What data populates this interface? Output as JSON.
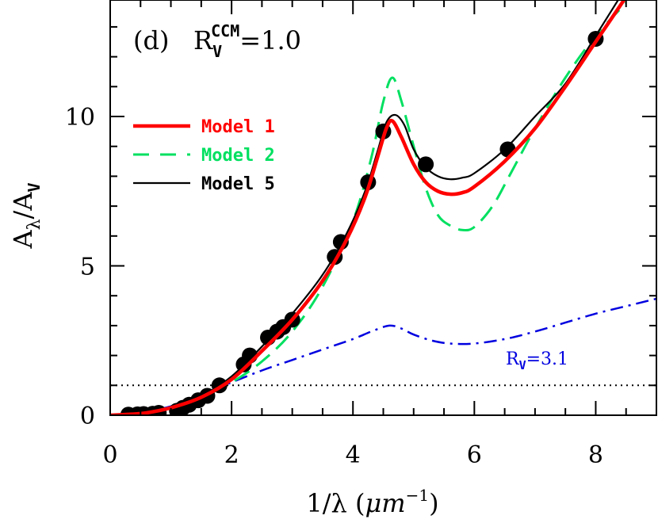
{
  "chart_data": {
    "type": "line",
    "panel_label": "(d)",
    "rv_label": {
      "base": "R",
      "sub": "V",
      "sup": "CCM",
      "value": "=1.0"
    },
    "xlabel": {
      "prefix": "1/λ (",
      "unit": "μm",
      "sup": "−1",
      "suffix": ")"
    },
    "ylabel": {
      "base": "A",
      "sub_base": "λ",
      "slash": "/A",
      "sub_den": "V"
    },
    "xlim": [
      0,
      9
    ],
    "ylim": [
      0,
      13.9
    ],
    "xticks": [
      0,
      2,
      4,
      6,
      8
    ],
    "yticks": [
      0,
      5,
      10
    ],
    "xtick_labels": [
      "0",
      "2",
      "4",
      "6",
      "8"
    ],
    "ytick_labels": [
      "0",
      "5",
      "10"
    ],
    "grid": false,
    "legend_position": "upper-left",
    "reference_line": {
      "y": 1.0,
      "style": "dotted",
      "color": "#000000"
    },
    "annotation": {
      "base": "R",
      "sub": "V",
      "value": "=3.1",
      "color": "#0000e0"
    },
    "series": [
      {
        "name": "Model 1",
        "color": "#ff0000",
        "style": "solid-thick",
        "x": [
          0,
          0.3,
          0.6,
          1.0,
          1.5,
          2.0,
          2.5,
          3.0,
          3.5,
          3.9,
          4.2,
          4.4,
          4.55,
          4.65,
          4.8,
          5.0,
          5.2,
          5.4,
          5.6,
          5.8,
          6.0,
          6.5,
          7.0,
          7.5,
          8.0,
          8.5
        ],
        "y": [
          0,
          0.03,
          0.08,
          0.25,
          0.6,
          1.2,
          2.15,
          3.2,
          4.5,
          5.9,
          7.3,
          8.6,
          9.6,
          9.85,
          9.3,
          8.4,
          7.8,
          7.5,
          7.4,
          7.45,
          7.65,
          8.5,
          9.6,
          11.0,
          12.5,
          14.0
        ]
      },
      {
        "name": "Model 2",
        "color": "#00e060",
        "style": "dashed",
        "x": [
          0,
          0.5,
          1.0,
          1.5,
          2.0,
          2.5,
          3.0,
          3.5,
          4.0,
          4.3,
          4.5,
          4.65,
          4.8,
          5.0,
          5.2,
          5.4,
          5.6,
          5.8,
          6.0,
          6.3,
          6.6,
          7.0,
          7.5,
          8.0,
          8.5
        ],
        "y": [
          0,
          0.05,
          0.25,
          0.6,
          1.1,
          1.8,
          2.8,
          4.3,
          6.5,
          8.6,
          10.5,
          11.3,
          10.5,
          9.0,
          7.6,
          6.7,
          6.35,
          6.2,
          6.3,
          7.0,
          8.1,
          9.6,
          11.3,
          12.7,
          13.8
        ]
      },
      {
        "name": "Model 5",
        "color": "#000000",
        "style": "solid-thin",
        "x": [
          0,
          0.3,
          0.6,
          1.0,
          1.5,
          2.0,
          2.5,
          3.0,
          3.5,
          3.9,
          4.2,
          4.4,
          4.55,
          4.7,
          4.85,
          5.0,
          5.2,
          5.4,
          5.6,
          5.8,
          6.0,
          6.5,
          7.0,
          7.5,
          8.0,
          8.4
        ],
        "y": [
          0,
          0.03,
          0.08,
          0.25,
          0.62,
          1.3,
          2.3,
          3.4,
          4.7,
          6.1,
          7.5,
          8.8,
          9.8,
          10.05,
          9.7,
          8.9,
          8.3,
          8.0,
          7.9,
          7.95,
          8.1,
          8.9,
          10.0,
          11.1,
          12.7,
          14.0
        ]
      },
      {
        "name": "",
        "color": "#0000e0",
        "style": "dash-dot",
        "x": [
          0,
          0.5,
          1.0,
          1.5,
          2.0,
          2.5,
          3.0,
          3.5,
          4.0,
          4.3,
          4.6,
          4.8,
          5.0,
          5.3,
          5.6,
          6.0,
          6.5,
          7.0,
          7.5,
          8.0,
          8.5,
          9.0
        ],
        "y": [
          0,
          0.1,
          0.3,
          0.7,
          1.1,
          1.5,
          1.85,
          2.2,
          2.55,
          2.8,
          3.0,
          2.9,
          2.7,
          2.5,
          2.4,
          2.4,
          2.55,
          2.8,
          3.1,
          3.4,
          3.65,
          3.9
        ]
      }
    ],
    "observed_points": {
      "x": [
        0.3,
        0.45,
        0.55,
        0.7,
        0.8,
        1.1,
        1.2,
        1.3,
        1.45,
        1.6,
        1.8,
        2.2,
        2.3,
        2.6,
        2.75,
        2.85,
        3.0,
        3.7,
        3.8,
        4.25,
        4.5,
        5.2,
        6.55,
        8.0
      ],
      "y": [
        0.02,
        0.03,
        0.04,
        0.05,
        0.08,
        0.15,
        0.25,
        0.35,
        0.5,
        0.65,
        1.0,
        1.7,
        2.0,
        2.6,
        2.8,
        2.95,
        3.2,
        5.3,
        5.8,
        7.8,
        9.5,
        8.4,
        8.9,
        12.6
      ]
    }
  }
}
